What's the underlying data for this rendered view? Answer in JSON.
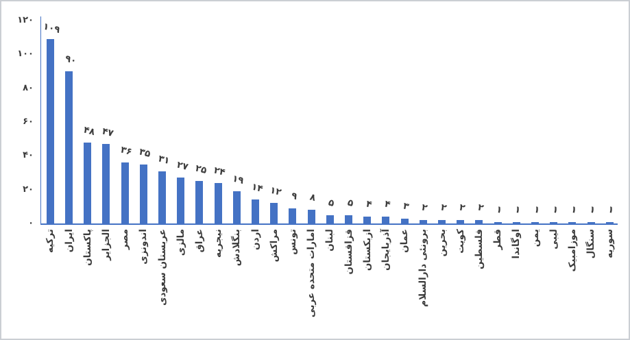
{
  "colors": {
    "bar": "#4472C4",
    "axis": "#4472C4",
    "text": "#3c3c3c",
    "frame_border": "#cbced3",
    "background": "#ffffff"
  },
  "chart_data": {
    "type": "bar",
    "title": "",
    "categories": [
      "ترکیه",
      "ایران",
      "پاکستان",
      "الجزایر",
      "مصر",
      "اندونزی",
      "عربستان سعودی",
      "مالزی",
      "عراق",
      "نیجریه",
      "بنگلادش",
      "اردن",
      "مراکش",
      "تونس",
      "امارات متحده عربی",
      "لبنان",
      "قزاقستان",
      "ازبکستان",
      "آذربایجان",
      "عمان",
      "برونئی دارالسلام",
      "بحرین",
      "کویت",
      "فلسطین",
      "قطر",
      "اوگاندا",
      "یمن",
      "لیبی",
      "موزامبیک",
      "سنگال",
      "سوریه"
    ],
    "values": [
      109,
      90,
      48,
      47,
      36,
      35,
      31,
      27,
      25,
      24,
      19,
      14,
      12,
      9,
      8,
      5,
      5,
      4,
      4,
      3,
      2,
      2,
      2,
      2,
      1,
      1,
      1,
      1,
      1,
      1,
      1
    ],
    "value_labels": [
      "۱۰۹",
      "۹۰",
      "۴۸",
      "۴۷",
      "۳۶",
      "۳۵",
      "۳۱",
      "۲۷",
      "۲۵",
      "۲۴",
      "۱۹",
      "۱۴",
      "۱۲",
      "۹",
      "۸",
      "۵",
      "۵",
      "۴",
      "۴",
      "۳",
      "۲",
      "۲",
      "۲",
      "۲",
      "۱",
      "۱",
      "۱",
      "۱",
      "۱",
      "۱",
      "۱"
    ],
    "y_ticks": [
      {
        "value": 120,
        "label": "۱۲۰"
      },
      {
        "value": 100,
        "label": "۱۰۰"
      },
      {
        "value": 80,
        "label": "۸۰"
      },
      {
        "value": 60,
        "label": "۶۰"
      },
      {
        "value": 40,
        "label": "۴۰"
      },
      {
        "value": 20,
        "label": "۲۰"
      },
      {
        "value": 0,
        "label": "۰"
      }
    ],
    "ylim": [
      0,
      120
    ],
    "xlabel": "",
    "ylabel": "",
    "grid": false,
    "legend": false,
    "value_labels_rotated": true,
    "category_labels_rotated": true
  }
}
